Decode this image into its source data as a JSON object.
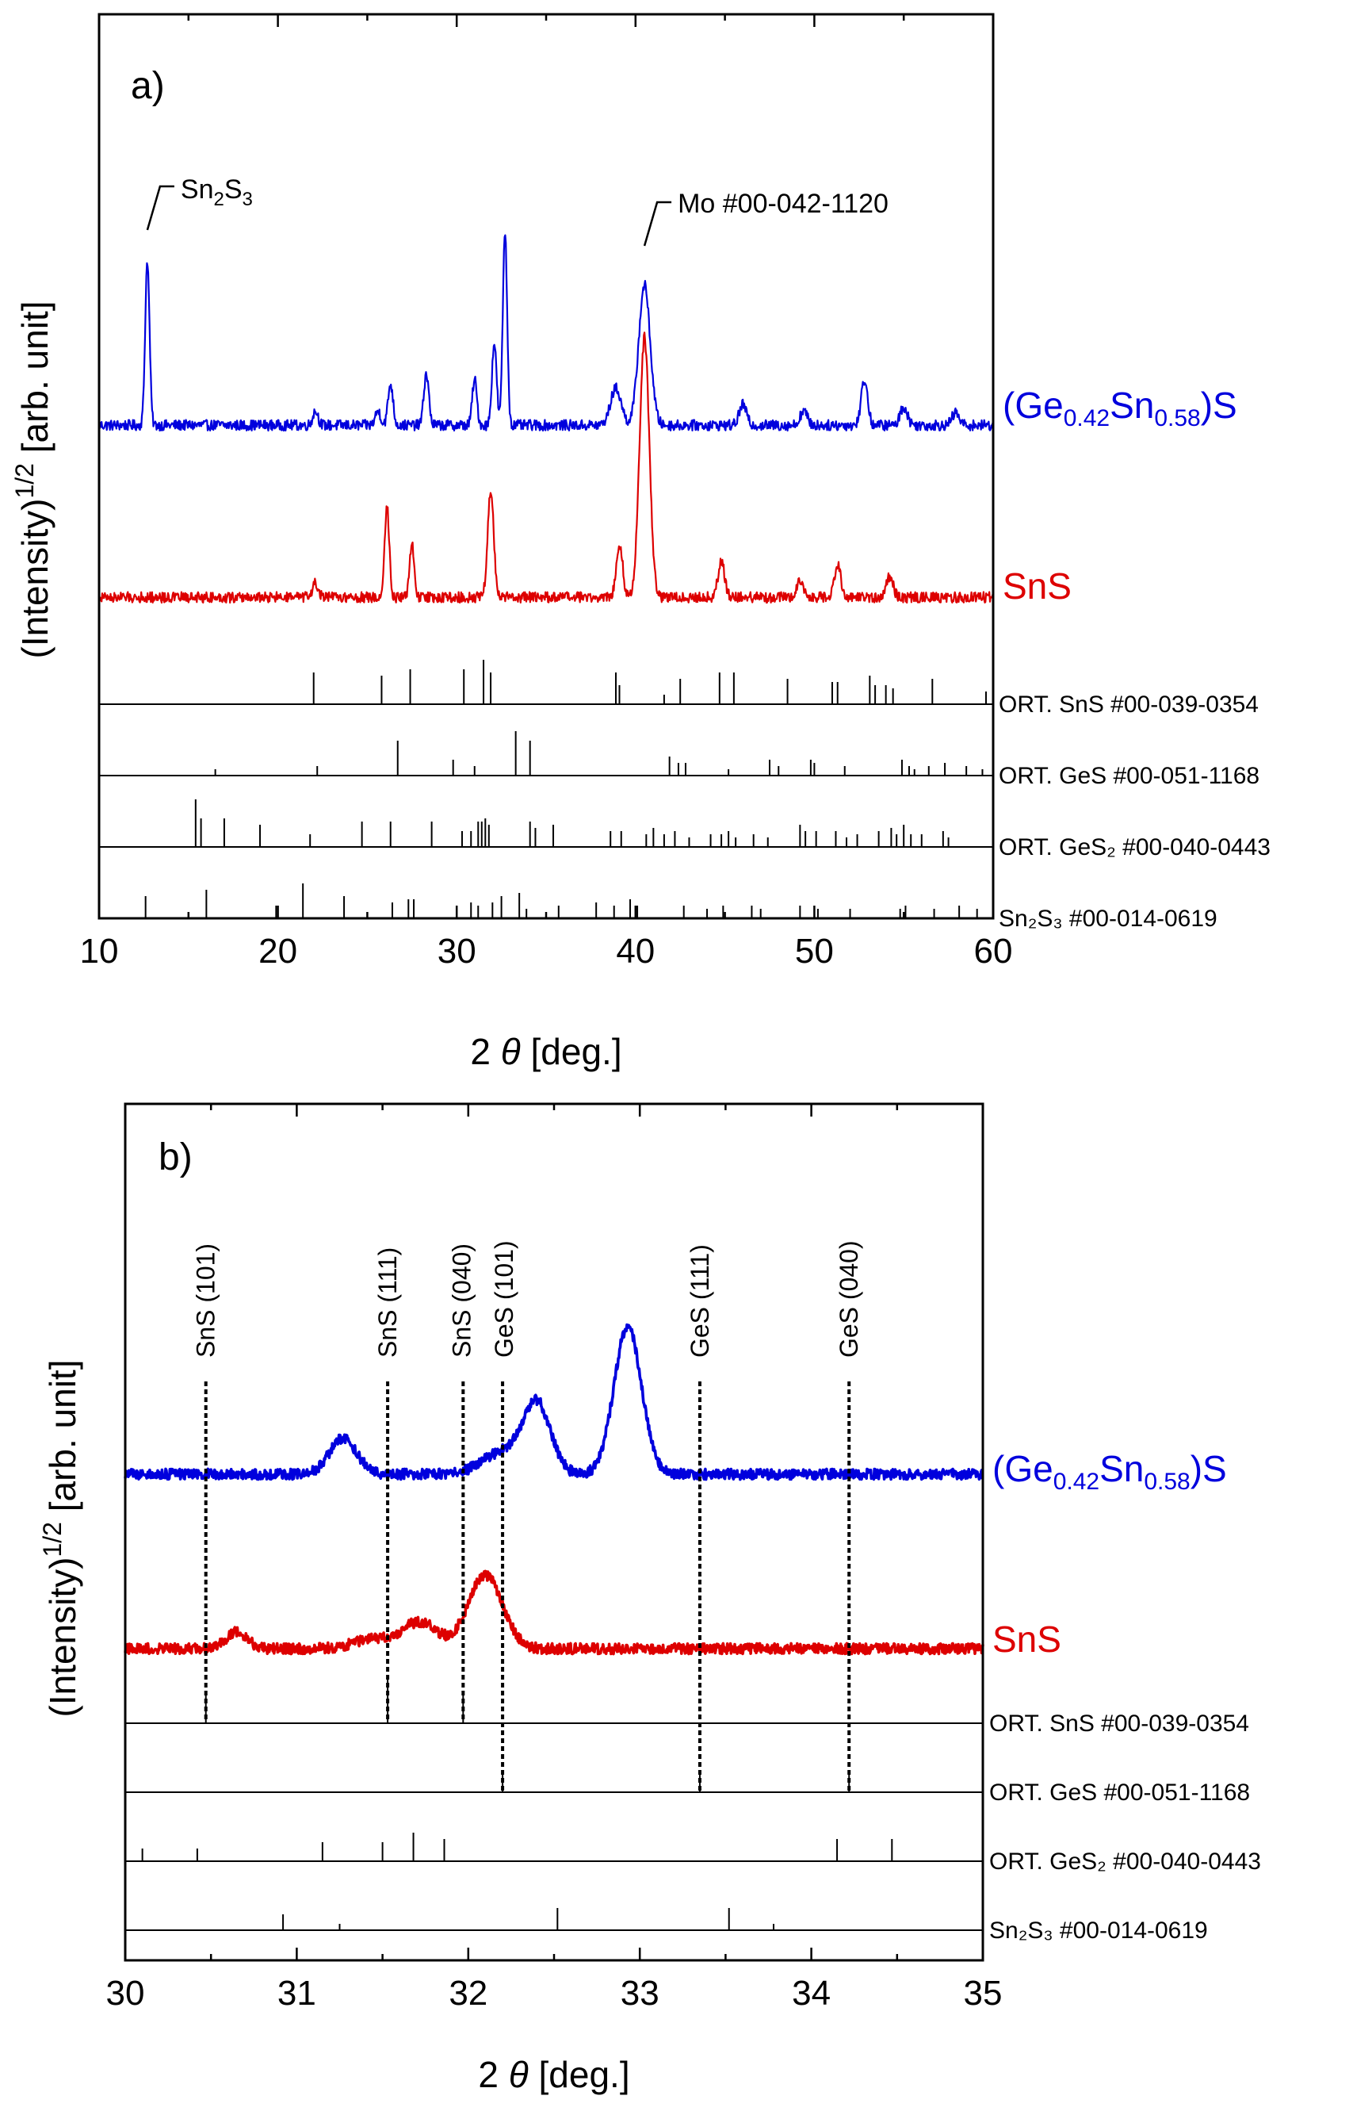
{
  "colors": {
    "blue": "#0000dd",
    "red": "#dd0000",
    "black": "#000000"
  },
  "chart_data": [
    {
      "type": "line",
      "panel_label": "a)",
      "xlabel_prefix": "2",
      "xlabel_symbol": "θ",
      "xlabel_unit": "[deg.]",
      "ylabel_main": "(Intensity)",
      "ylabel_sup": "1/2",
      "ylabel_unit": "[arb. unit]",
      "xlim": [
        10,
        60
      ],
      "xticks": [
        10,
        20,
        30,
        40,
        50,
        60
      ],
      "x_minor_step": 5,
      "series": [
        {
          "name": "(Ge0.42Sn0.58)S",
          "label_main1": "(Ge",
          "label_sub1": "0.42",
          "label_main2": "Sn",
          "label_sub2": "0.58",
          "label_main3": ")S",
          "color": "#0000dd",
          "baseline": 0.13,
          "noise": 0.13,
          "peaks": [
            [
              12.7,
              4.0,
              0.12
            ],
            [
              22.1,
              0.35,
              0.15
            ],
            [
              25.6,
              0.35,
              0.15
            ],
            [
              26.3,
              1.0,
              0.14
            ],
            [
              28.3,
              1.25,
              0.14
            ],
            [
              31.0,
              1.1,
              0.13
            ],
            [
              32.1,
              2.0,
              0.13
            ],
            [
              32.7,
              4.7,
              0.12
            ],
            [
              38.9,
              0.9,
              0.3
            ],
            [
              40.5,
              3.4,
              0.32
            ],
            [
              46.0,
              0.5,
              0.2
            ],
            [
              49.4,
              0.35,
              0.2
            ],
            [
              52.8,
              1.1,
              0.18
            ],
            [
              55.0,
              0.45,
              0.2
            ],
            [
              57.9,
              0.3,
              0.2
            ]
          ]
        },
        {
          "name": "SnS",
          "label_main1": "SnS",
          "color": "#dd0000",
          "baseline": 0.13,
          "noise": 0.13,
          "peaks": [
            [
              22.1,
              0.35,
              0.15
            ],
            [
              26.1,
              2.2,
              0.13
            ],
            [
              27.5,
              1.3,
              0.13
            ],
            [
              31.9,
              2.6,
              0.17
            ],
            [
              39.1,
              1.3,
              0.18
            ],
            [
              40.5,
              6.3,
              0.27
            ],
            [
              44.8,
              0.9,
              0.18
            ],
            [
              49.2,
              0.4,
              0.2
            ],
            [
              51.3,
              0.8,
              0.18
            ],
            [
              54.2,
              0.5,
              0.2
            ]
          ]
        }
      ],
      "reference_patterns": [
        {
          "label": "ORT. SnS #00-039-0354",
          "lines": [
            [
              22.0,
              0.5
            ],
            [
              25.8,
              0.45
            ],
            [
              27.4,
              0.55
            ],
            [
              30.4,
              0.55
            ],
            [
              31.5,
              0.7
            ],
            [
              31.9,
              0.5
            ],
            [
              38.9,
              0.5
            ],
            [
              39.1,
              0.3
            ],
            [
              41.6,
              0.15
            ],
            [
              42.5,
              0.4
            ],
            [
              44.7,
              0.5
            ],
            [
              45.5,
              0.5
            ],
            [
              48.5,
              0.4
            ],
            [
              51.0,
              0.35
            ],
            [
              51.3,
              0.35
            ],
            [
              53.1,
              0.45
            ],
            [
              53.4,
              0.3
            ],
            [
              54.0,
              0.3
            ],
            [
              54.4,
              0.25
            ],
            [
              56.6,
              0.4
            ],
            [
              59.6,
              0.2
            ]
          ]
        },
        {
          "label": "ORT. GeS #00-051-1168",
          "lines": [
            [
              16.5,
              0.1
            ],
            [
              22.2,
              0.15
            ],
            [
              26.7,
              0.55
            ],
            [
              29.8,
              0.25
            ],
            [
              31.0,
              0.15
            ],
            [
              33.3,
              0.7
            ],
            [
              34.1,
              0.55
            ],
            [
              41.9,
              0.3
            ],
            [
              42.4,
              0.2
            ],
            [
              42.8,
              0.2
            ],
            [
              45.2,
              0.1
            ],
            [
              47.5,
              0.25
            ],
            [
              48.0,
              0.15
            ],
            [
              49.8,
              0.25
            ],
            [
              50.0,
              0.2
            ],
            [
              51.7,
              0.15
            ],
            [
              54.9,
              0.25
            ],
            [
              55.3,
              0.15
            ],
            [
              55.6,
              0.1
            ],
            [
              56.4,
              0.15
            ],
            [
              57.3,
              0.2
            ],
            [
              58.5,
              0.15
            ],
            [
              59.4,
              0.1
            ]
          ]
        },
        {
          "label": "ORT. GeS₂ #00-040-0443",
          "lines": [
            [
              15.4,
              0.75
            ],
            [
              15.7,
              0.45
            ],
            [
              17.0,
              0.45
            ],
            [
              19.0,
              0.35
            ],
            [
              21.8,
              0.2
            ],
            [
              24.7,
              0.4
            ],
            [
              26.3,
              0.4
            ],
            [
              28.6,
              0.4
            ],
            [
              30.3,
              0.25
            ],
            [
              30.8,
              0.25
            ],
            [
              31.2,
              0.4
            ],
            [
              31.4,
              0.4
            ],
            [
              31.6,
              0.45
            ],
            [
              31.8,
              0.35
            ],
            [
              34.1,
              0.4
            ],
            [
              34.4,
              0.3
            ],
            [
              35.4,
              0.35
            ],
            [
              38.6,
              0.25
            ],
            [
              39.2,
              0.25
            ],
            [
              40.6,
              0.2
            ],
            [
              41.0,
              0.3
            ],
            [
              41.6,
              0.2
            ],
            [
              42.2,
              0.25
            ],
            [
              43.0,
              0.15
            ],
            [
              44.2,
              0.2
            ],
            [
              44.8,
              0.2
            ],
            [
              45.2,
              0.25
            ],
            [
              45.6,
              0.15
            ],
            [
              46.6,
              0.2
            ],
            [
              47.4,
              0.15
            ],
            [
              49.2,
              0.35
            ],
            [
              49.5,
              0.25
            ],
            [
              50.1,
              0.25
            ],
            [
              51.2,
              0.25
            ],
            [
              51.8,
              0.15
            ],
            [
              52.4,
              0.2
            ],
            [
              53.6,
              0.25
            ],
            [
              54.3,
              0.3
            ],
            [
              54.6,
              0.2
            ],
            [
              55.0,
              0.35
            ],
            [
              55.4,
              0.2
            ],
            [
              56.0,
              0.2
            ],
            [
              57.2,
              0.25
            ],
            [
              57.5,
              0.15
            ]
          ]
        },
        {
          "label": "Sn₂S₃ #00-014-0619",
          "lines": [
            [
              12.6,
              0.35
            ],
            [
              16.0,
              0.45
            ],
            [
              19.9,
              0.2
            ],
            [
              21.4,
              0.55
            ],
            [
              23.7,
              0.35
            ],
            [
              26.4,
              0.25
            ],
            [
              27.3,
              0.3
            ],
            [
              27.6,
              0.3
            ],
            [
              30.8,
              0.25
            ],
            [
              31.2,
              0.2
            ],
            [
              32.0,
              0.25
            ],
            [
              32.5,
              0.35
            ],
            [
              33.5,
              0.4
            ],
            [
              33.9,
              0.15
            ],
            [
              35.7,
              0.2
            ],
            [
              37.8,
              0.25
            ],
            [
              38.8,
              0.2
            ],
            [
              39.7,
              0.3
            ],
            [
              40.1,
              0.2
            ],
            [
              42.7,
              0.2
            ],
            [
              44.0,
              0.15
            ],
            [
              44.9,
              0.2
            ],
            [
              46.5,
              0.2
            ],
            [
              47.0,
              0.15
            ],
            [
              49.2,
              0.2
            ],
            [
              50.2,
              0.15
            ],
            [
              52.0,
              0.15
            ],
            [
              54.8,
              0.15
            ],
            [
              55.1,
              0.2
            ],
            [
              56.7,
              0.15
            ],
            [
              58.1,
              0.2
            ],
            [
              59.1,
              0.15
            ]
          ]
        }
      ],
      "annotations": [
        {
          "text_main": "Sn",
          "text_sub1": "2",
          "text_main2": "S",
          "text_sub2": "3",
          "x": 12.7
        },
        {
          "text_main": "Mo #00-042-1120",
          "x": 40.5
        }
      ]
    },
    {
      "type": "line",
      "panel_label": "b)",
      "xlabel_prefix": "2",
      "xlabel_symbol": "θ",
      "xlabel_unit": "[deg.]",
      "ylabel_main": "(Intensity)",
      "ylabel_sup": "1/2",
      "ylabel_unit": "[arb. unit]",
      "xlim": [
        30,
        35
      ],
      "xticks": [
        30,
        31,
        32,
        33,
        34,
        35
      ],
      "x_minor_step": 0.5,
      "series": [
        {
          "name": "(Ge0.42Sn0.58)S",
          "label_main1": "(Ge",
          "label_sub1": "0.42",
          "label_main2": "Sn",
          "label_sub2": "0.58",
          "label_main3": ")S",
          "color": "#0000dd",
          "baseline": 0.1,
          "noise": 0.11,
          "peaks": [
            [
              31.27,
              0.75,
              0.08
            ],
            [
              32.2,
              0.45,
              0.12
            ],
            [
              32.4,
              1.45,
              0.08
            ],
            [
              32.93,
              3.1,
              0.08
            ]
          ]
        },
        {
          "name": "SnS",
          "label_main1": "SnS",
          "color": "#dd0000",
          "baseline": 0.1,
          "noise": 0.11,
          "peaks": [
            [
              30.65,
              0.35,
              0.06
            ],
            [
              31.72,
              0.55,
              0.1
            ],
            [
              31.45,
              0.2,
              0.12
            ],
            [
              32.1,
              1.55,
              0.1
            ]
          ]
        }
      ],
      "reference_patterns": [
        {
          "label": "ORT. SnS #00-039-0354",
          "lines": [
            [
              30.47,
              0.5
            ],
            [
              31.53,
              0.7
            ],
            [
              31.97,
              0.45
            ]
          ]
        },
        {
          "label": "ORT. GeS #00-051-1168",
          "lines": [
            [
              32.2,
              0.35
            ],
            [
              33.35,
              0.35
            ],
            [
              34.22,
              0.35
            ]
          ]
        },
        {
          "label": "ORT. GeS₂ #00-040-0443",
          "lines": [
            [
              30.1,
              0.2
            ],
            [
              30.42,
              0.2
            ],
            [
              31.15,
              0.3
            ],
            [
              31.5,
              0.3
            ],
            [
              31.68,
              0.45
            ],
            [
              31.86,
              0.35
            ],
            [
              34.15,
              0.35
            ],
            [
              34.47,
              0.35
            ]
          ]
        },
        {
          "label": "Sn₂S₃ #00-014-0619",
          "lines": [
            [
              30.92,
              0.25
            ],
            [
              31.25,
              0.1
            ],
            [
              32.52,
              0.35
            ],
            [
              33.52,
              0.35
            ],
            [
              33.78,
              0.1
            ]
          ]
        }
      ],
      "vertical_lines": [
        {
          "x": 30.47,
          "label": "SnS (101)"
        },
        {
          "x": 31.53,
          "label": "SnS (111)"
        },
        {
          "x": 31.97,
          "label": "SnS (040)"
        },
        {
          "x": 32.2,
          "label": "GeS (101)"
        },
        {
          "x": 33.35,
          "label": "GeS (111)"
        },
        {
          "x": 34.22,
          "label": "GeS (040)"
        }
      ]
    }
  ]
}
